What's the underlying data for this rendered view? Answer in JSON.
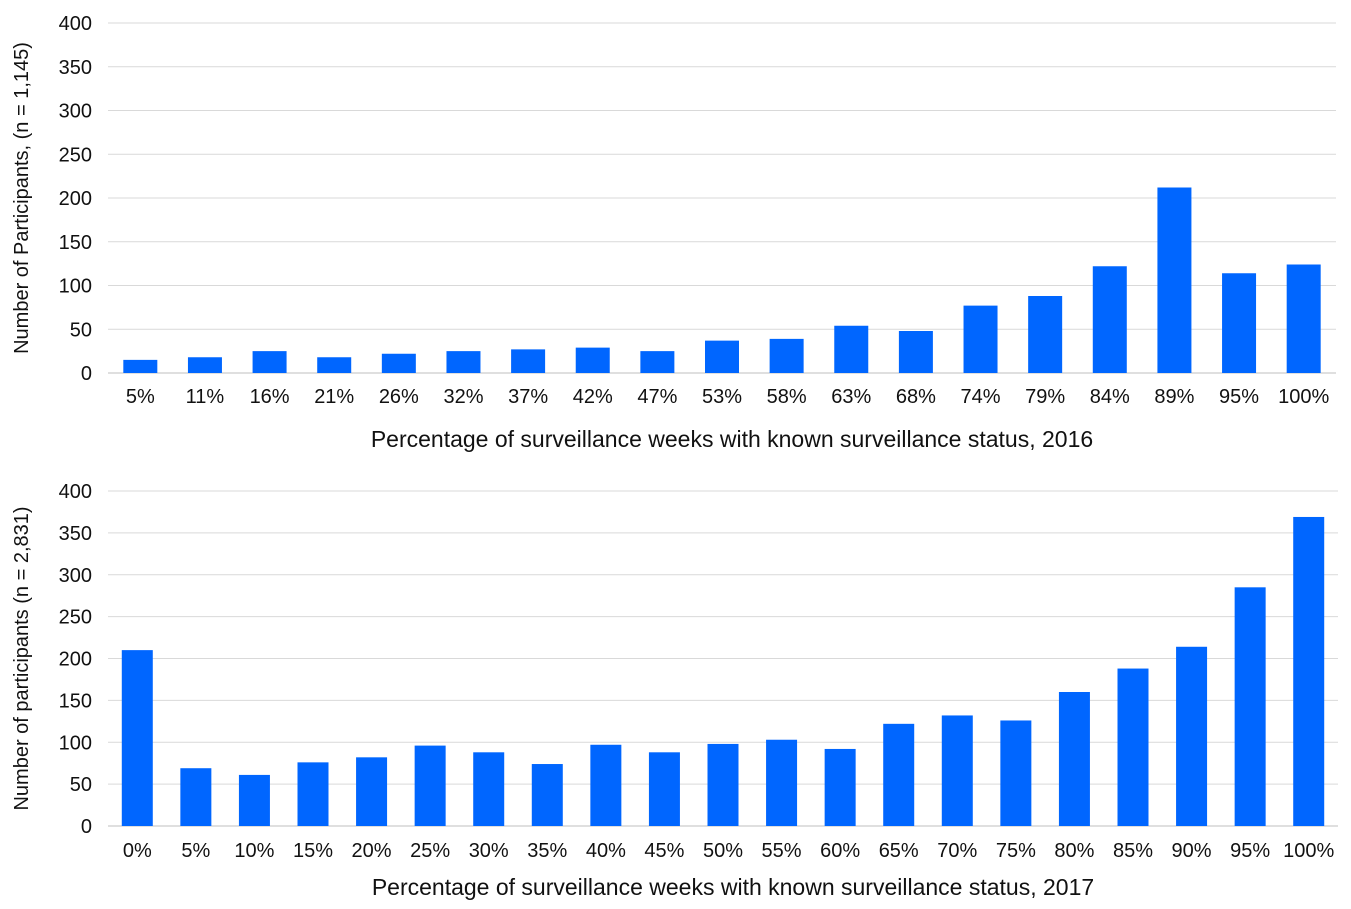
{
  "chart_data": [
    {
      "type": "bar",
      "xlabel": "Percentage of surveillance weeks with known surveillance status,  2016",
      "ylabel": "Number of Participants, (n = 1,145)",
      "ylim": [
        0,
        400
      ],
      "yticks": [
        0,
        50,
        100,
        150,
        200,
        250,
        300,
        350,
        400
      ],
      "grid": true,
      "bar_color": "#0066ff",
      "categories": [
        "5%",
        "11%",
        "16%",
        "21%",
        "26%",
        "32%",
        "37%",
        "42%",
        "47%",
        "53%",
        "58%",
        "63%",
        "68%",
        "74%",
        "79%",
        "84%",
        "89%",
        "95%",
        "100%"
      ],
      "values": [
        15,
        18,
        25,
        18,
        22,
        25,
        27,
        29,
        25,
        37,
        39,
        54,
        48,
        77,
        88,
        122,
        212,
        114,
        124
      ]
    },
    {
      "type": "bar",
      "xlabel": "Percentage of surveillance weeks with known surveillance status, 2017",
      "ylabel": "Number of participants (n = 2,831)",
      "ylim": [
        0,
        400
      ],
      "yticks": [
        0,
        50,
        100,
        150,
        200,
        250,
        300,
        350,
        400
      ],
      "grid": true,
      "bar_color": "#0066ff",
      "categories": [
        "0%",
        "5%",
        "10%",
        "15%",
        "20%",
        "25%",
        "30%",
        "35%",
        "40%",
        "45%",
        "50%",
        "55%",
        "60%",
        "65%",
        "70%",
        "75%",
        "80%",
        "85%",
        "90%",
        "95%",
        "100%"
      ],
      "values": [
        210,
        69,
        61,
        76,
        82,
        96,
        88,
        74,
        97,
        88,
        98,
        103,
        92,
        122,
        132,
        126,
        160,
        188,
        214,
        285,
        369
      ]
    }
  ]
}
